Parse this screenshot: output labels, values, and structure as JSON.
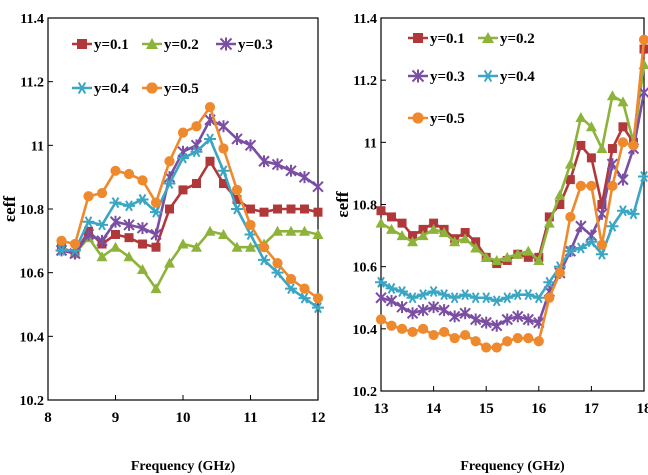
{
  "chart_data": [
    {
      "type": "line",
      "xlabel": "Frequency (GHz)",
      "ylabel": "εeff",
      "xlim": [
        8,
        12
      ],
      "ylim": [
        10.2,
        11.4
      ],
      "xticks": [
        "8",
        "9",
        "10",
        "11",
        "12"
      ],
      "yticks": [
        "10.2",
        "10.4",
        "10.6",
        "10.8",
        "11",
        "11.2",
        "11.4"
      ],
      "grid": false,
      "legend_position": "top-left",
      "x": [
        8.2,
        8.4,
        8.6,
        8.8,
        9.0,
        9.2,
        9.4,
        9.6,
        9.8,
        10.0,
        10.2,
        10.4,
        10.6,
        10.8,
        11.0,
        11.2,
        11.4,
        11.6,
        11.8,
        12.0
      ],
      "series": [
        {
          "name": "y=0.1",
          "color": "#b0383a",
          "marker": "square",
          "values": [
            10.68,
            10.66,
            10.73,
            10.69,
            10.72,
            10.71,
            10.69,
            10.68,
            10.8,
            10.86,
            10.88,
            10.95,
            10.88,
            10.83,
            10.8,
            10.79,
            10.8,
            10.8,
            10.8,
            10.79
          ]
        },
        {
          "name": "y=0.2",
          "color": "#8db33a",
          "marker": "triangle",
          "values": [
            10.68,
            10.66,
            10.71,
            10.65,
            10.68,
            10.65,
            10.61,
            10.55,
            10.63,
            10.69,
            10.68,
            10.73,
            10.72,
            10.68,
            10.68,
            10.69,
            10.73,
            10.73,
            10.73,
            10.72
          ]
        },
        {
          "name": "y=0.3",
          "color": "#7a4ea3",
          "marker": "star",
          "values": [
            10.67,
            10.66,
            10.72,
            10.7,
            10.76,
            10.75,
            10.74,
            10.72,
            10.9,
            10.98,
            11.0,
            11.08,
            11.06,
            11.02,
            11.0,
            10.95,
            10.94,
            10.92,
            10.9,
            10.87
          ]
        },
        {
          "name": "y=0.4",
          "color": "#3aa6c4",
          "marker": "asterisk",
          "values": [
            10.67,
            10.67,
            10.76,
            10.75,
            10.82,
            10.81,
            10.83,
            10.79,
            10.88,
            10.96,
            10.98,
            11.02,
            10.92,
            10.8,
            10.72,
            10.64,
            10.6,
            10.55,
            10.52,
            10.49
          ]
        },
        {
          "name": "y=0.5",
          "color": "#ee8a2d",
          "marker": "circle",
          "values": [
            10.7,
            10.69,
            10.84,
            10.85,
            10.92,
            10.91,
            10.89,
            10.82,
            10.95,
            11.04,
            11.06,
            11.12,
            10.99,
            10.86,
            10.75,
            10.68,
            10.63,
            10.58,
            10.55,
            10.52
          ]
        }
      ]
    },
    {
      "type": "line",
      "xlabel": "Frequency (GHz)",
      "ylabel": "εeff",
      "xlim": [
        13,
        18
      ],
      "ylim": [
        10.2,
        11.4
      ],
      "xticks": [
        "13",
        "14",
        "15",
        "16",
        "17",
        "18"
      ],
      "yticks": [
        "10.2",
        "10.4",
        "10.6",
        "10.8",
        "11",
        "11.2",
        "11.4"
      ],
      "grid": false,
      "legend_position": "top-left",
      "x": [
        13.0,
        13.2,
        13.4,
        13.6,
        13.8,
        14.0,
        14.2,
        14.4,
        14.6,
        14.8,
        15.0,
        15.2,
        15.4,
        15.6,
        15.8,
        16.0,
        16.2,
        16.4,
        16.6,
        16.8,
        17.0,
        17.2,
        17.4,
        17.6,
        17.8,
        18.0
      ],
      "series": [
        {
          "name": "y=0.1",
          "color": "#b0383a",
          "marker": "square",
          "values": [
            10.78,
            10.76,
            10.74,
            10.7,
            10.72,
            10.74,
            10.72,
            10.69,
            10.71,
            10.68,
            10.63,
            10.61,
            10.62,
            10.64,
            10.63,
            10.63,
            10.76,
            10.8,
            10.88,
            10.99,
            10.95,
            10.8,
            10.98,
            11.05,
            11.0,
            11.3
          ]
        },
        {
          "name": "y=0.2",
          "color": "#8db33a",
          "marker": "triangle",
          "values": [
            10.74,
            10.72,
            10.7,
            10.68,
            10.7,
            10.72,
            10.71,
            10.68,
            10.69,
            10.66,
            10.63,
            10.62,
            10.63,
            10.64,
            10.65,
            10.62,
            10.74,
            10.83,
            10.93,
            11.08,
            11.05,
            10.98,
            11.15,
            11.13,
            11.0,
            11.25
          ]
        },
        {
          "name": "y=0.3",
          "color": "#7a4ea3",
          "marker": "star",
          "values": [
            10.5,
            10.49,
            10.47,
            10.45,
            10.46,
            10.47,
            10.46,
            10.44,
            10.45,
            10.43,
            10.42,
            10.41,
            10.43,
            10.44,
            10.43,
            10.42,
            10.52,
            10.58,
            10.65,
            10.73,
            10.7,
            10.77,
            10.93,
            10.88,
            10.98,
            11.16
          ]
        },
        {
          "name": "y=0.4",
          "color": "#3aa6c4",
          "marker": "asterisk",
          "values": [
            10.55,
            10.53,
            10.52,
            10.5,
            10.51,
            10.52,
            10.51,
            10.5,
            10.51,
            10.5,
            10.5,
            10.49,
            10.5,
            10.51,
            10.51,
            10.5,
            10.55,
            10.6,
            10.65,
            10.66,
            10.68,
            10.64,
            10.73,
            10.78,
            10.77,
            10.89
          ]
        },
        {
          "name": "y=0.5",
          "color": "#ee8a2d",
          "marker": "circle",
          "values": [
            10.43,
            10.41,
            10.4,
            10.39,
            10.4,
            10.38,
            10.39,
            10.37,
            10.38,
            10.36,
            10.34,
            10.34,
            10.36,
            10.37,
            10.37,
            10.36,
            10.5,
            10.58,
            10.76,
            10.86,
            10.86,
            10.67,
            10.86,
            11.0,
            10.99,
            11.33
          ]
        }
      ]
    }
  ]
}
